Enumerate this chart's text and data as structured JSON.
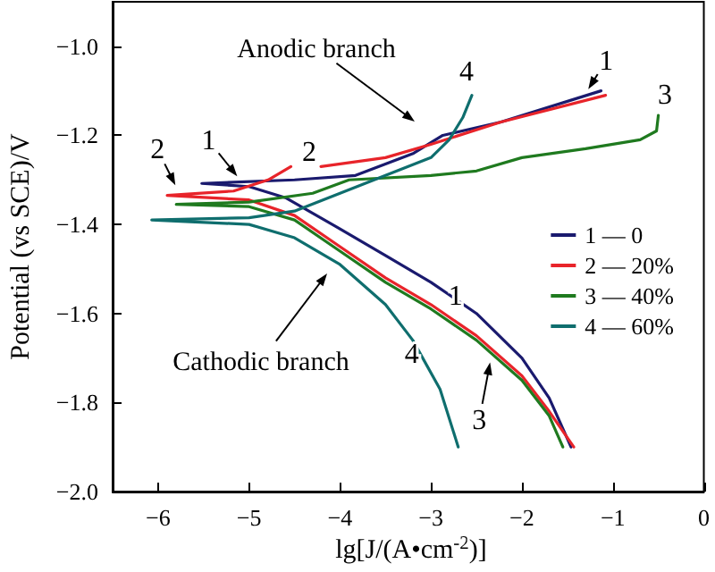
{
  "chart_data": {
    "type": "line",
    "xlabel": "lg[J/(A•cm$^{-2}$)]",
    "ylabel": "Potential (vs SCE)/V",
    "xlim": [
      -6.5,
      0
    ],
    "xticks": [
      {
        "value": -6,
        "label": "−6"
      },
      {
        "value": -5,
        "label": "−5"
      },
      {
        "value": -4,
        "label": "−4"
      },
      {
        "value": -3,
        "label": "−3"
      },
      {
        "value": -2,
        "label": "−2"
      },
      {
        "value": -1,
        "label": "−1"
      },
      0
    ],
    "ylim": [
      -2.0,
      -0.9
    ],
    "yticks": [
      {
        "value": -2.0,
        "label": "−2.0"
      },
      {
        "value": -1.8,
        "label": "−1.8"
      },
      {
        "value": -1.6,
        "label": "−1.6"
      },
      {
        "value": -1.4,
        "label": "−1.4"
      },
      {
        "value": -1.2,
        "label": "−1.2"
      },
      {
        "value": -1.0,
        "label": "−1.0"
      }
    ],
    "grid": false,
    "legend": "right",
    "marker": "none",
    "line_style": "solid",
    "series": [
      {
        "name": "1 — 0",
        "color": "#1a1a6e",
        "x": [
          -1.46,
          -1.7,
          -2.0,
          -2.5,
          -3.0,
          -3.5,
          -4.0,
          -4.6,
          -5.0,
          -5.52,
          -4.5,
          -3.83,
          -3.19,
          -2.87,
          -2.23,
          -1.13
        ],
        "values": [
          -1.9,
          -1.79,
          -1.7,
          -1.6,
          -1.53,
          -1.47,
          -1.41,
          -1.34,
          -1.315,
          -1.308,
          -1.3,
          -1.29,
          -1.24,
          -1.2,
          -1.17,
          -1.1
        ]
      },
      {
        "name": "2 — 20%",
        "color": "#e8242a",
        "x": [
          -1.43,
          -1.7,
          -2.0,
          -2.5,
          -3.0,
          -3.5,
          -4.0,
          -4.5,
          -5.0,
          -5.9,
          -5.17,
          -4.79,
          -4.54,
          null,
          -4.21,
          -3.5,
          -3.0,
          -2.23,
          -1.08
        ],
        "values": [
          -1.9,
          -1.82,
          -1.74,
          -1.65,
          -1.58,
          -1.52,
          -1.45,
          -1.38,
          -1.345,
          -1.335,
          -1.325,
          -1.3,
          -1.27,
          null,
          -1.27,
          -1.25,
          -1.22,
          -1.17,
          -1.11
        ]
      },
      {
        "name": "3 — 40%",
        "color": "#1f7a1f",
        "x": [
          -1.55,
          -1.7,
          -2.0,
          -2.5,
          -3.0,
          -3.5,
          -4.0,
          -4.5,
          -5.0,
          -5.8,
          -5.0,
          -4.3,
          -3.9,
          -3.0,
          -2.5,
          -2.0,
          -1.3,
          -0.7,
          -0.52,
          -0.5
        ],
        "values": [
          -1.9,
          -1.83,
          -1.75,
          -1.66,
          -1.59,
          -1.53,
          -1.46,
          -1.39,
          -1.36,
          -1.355,
          -1.35,
          -1.33,
          -1.3,
          -1.29,
          -1.28,
          -1.25,
          -1.23,
          -1.21,
          -1.19,
          -1.155
        ]
      },
      {
        "name": "4 — 60%",
        "color": "#0f6e6e",
        "x": [
          -2.7,
          -2.9,
          -3.2,
          -3.5,
          -4.0,
          -4.5,
          -5.0,
          -6.07,
          -5.0,
          -4.5,
          -4.0,
          -3.5,
          -3.0,
          -2.8,
          -2.65,
          -2.55
        ],
        "values": [
          -1.9,
          -1.77,
          -1.66,
          -1.58,
          -1.49,
          -1.43,
          -1.4,
          -1.39,
          -1.385,
          -1.37,
          -1.33,
          -1.29,
          -1.25,
          -1.21,
          -1.16,
          -1.11
        ]
      }
    ],
    "annotations": [
      "Anodic branch",
      {
        "text": "1",
        "x": -1.27,
        "y": -1.096
      },
      "3",
      "4",
      "2",
      {
        "text": "1",
        "x": -5.13,
        "y": -1.292
      },
      {
        "text": "2",
        "x": -5.81,
        "y": -1.312
      },
      {
        "text": "1",
        "x": -2.73,
        "y": -1.56
      },
      {
        "text": "4",
        "x": -3.21,
        "y": -1.69
      },
      {
        "text": "3",
        "x": -2.35,
        "y": -1.71
      },
      "Cathodic branch"
    ]
  }
}
